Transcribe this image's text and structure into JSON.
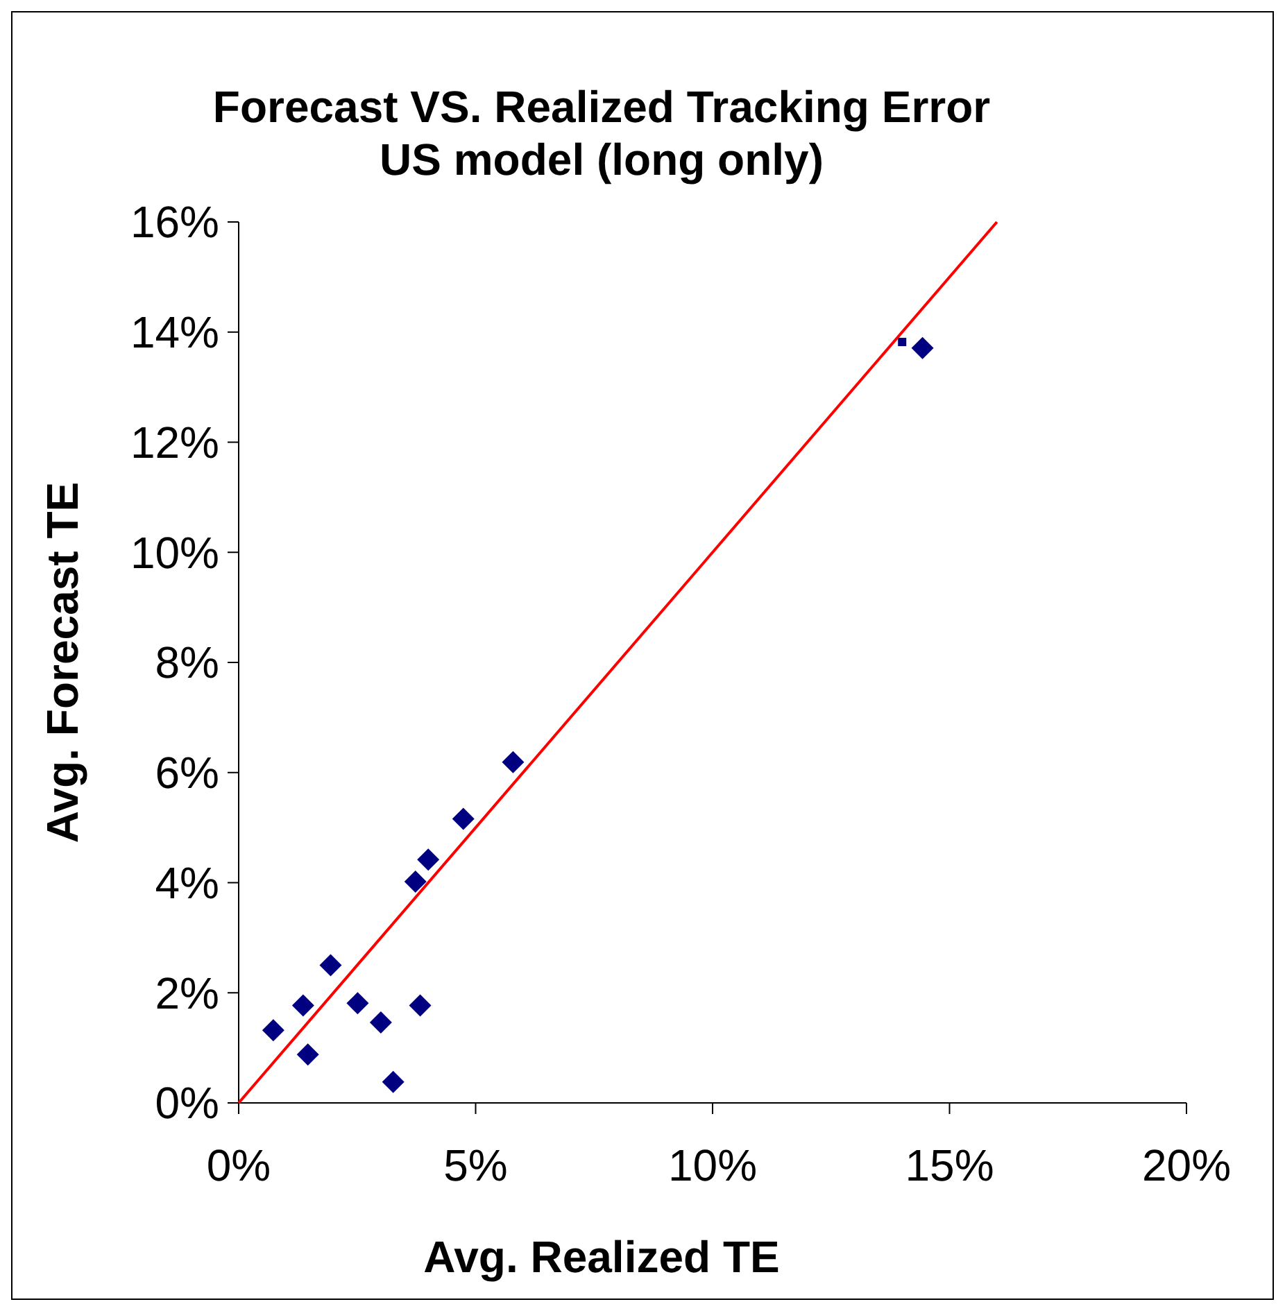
{
  "chart_data": {
    "type": "scatter",
    "title": "Forecast VS. Realized Tracking Error",
    "subtitle": "US model (long only)",
    "xlabel": "Avg. Realized TE",
    "ylabel": "Avg. Forecast TE",
    "series": [
      {
        "marker": "diamond",
        "color": "#000080",
        "x": [
          0.73,
          1.36,
          1.46,
          1.94,
          2.51,
          3.0,
          3.26,
          3.83,
          3.73,
          4.0,
          4.74,
          5.79,
          14.43
        ],
        "values": [
          1.32,
          1.77,
          0.88,
          2.5,
          1.81,
          1.46,
          0.38,
          1.77,
          4.02,
          4.42,
          5.16,
          6.19,
          13.71
        ]
      },
      {
        "marker": "square",
        "color": "#000080",
        "x": [
          14.0
        ],
        "values": [
          13.82
        ]
      },
      {
        "type": "line",
        "marker": "none",
        "color": "#ff0000",
        "x": [
          0,
          16
        ],
        "values": [
          0,
          16
        ]
      }
    ],
    "xlim": [
      0,
      20
    ],
    "ylim": [
      0,
      16
    ],
    "xticks": [
      {
        "value": 0,
        "label": "0%"
      },
      {
        "value": 5,
        "label": "5%"
      },
      {
        "value": 10,
        "label": "10%"
      },
      {
        "value": 15,
        "label": "15%"
      },
      {
        "value": 20,
        "label": "20%"
      }
    ],
    "yticks": [
      {
        "value": 0,
        "label": "0%"
      },
      {
        "value": 2,
        "label": "2%"
      },
      {
        "value": 4,
        "label": "4%"
      },
      {
        "value": 6,
        "label": "6%"
      },
      {
        "value": 8,
        "label": "8%"
      },
      {
        "value": 10,
        "label": "10%"
      },
      {
        "value": 12,
        "label": "12%"
      },
      {
        "value": 14,
        "label": "14%"
      },
      {
        "value": 16,
        "label": "16%"
      }
    ],
    "grid": false
  }
}
